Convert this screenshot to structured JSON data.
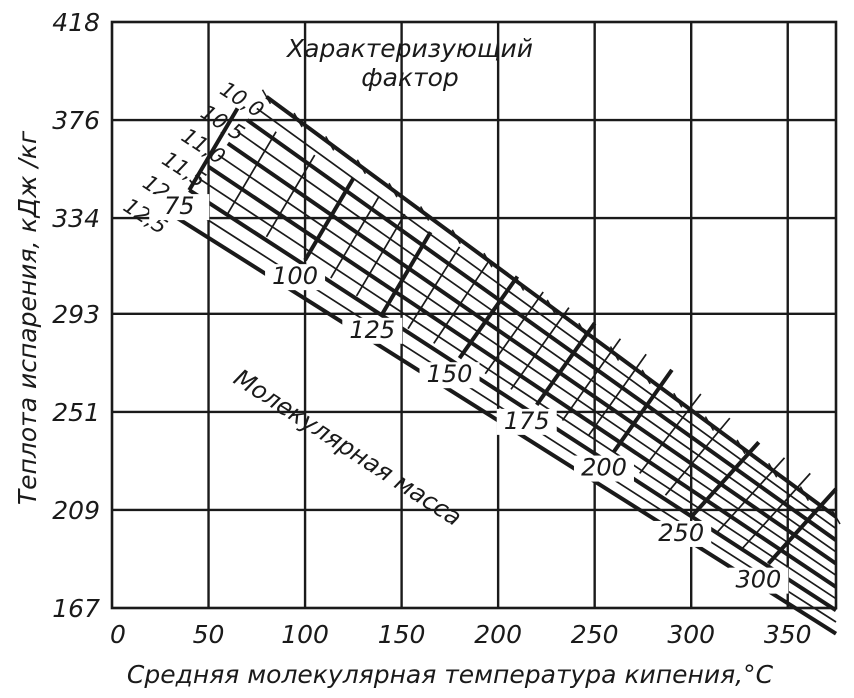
{
  "chart_data": {
    "type": "line",
    "title": "",
    "xlabel": "Средняя молекулярная температура кипения,°C",
    "ylabel": "Теплота испарения, кДж /кг",
    "xlim": [
      0,
      375
    ],
    "ylim": [
      167,
      418
    ],
    "x_ticks": [
      "0",
      "50",
      "100",
      "150",
      "200",
      "250",
      "300",
      "350"
    ],
    "y_ticks": [
      "418",
      "376",
      "334",
      "293",
      "251",
      "209",
      "167"
    ],
    "grid": true,
    "legend": "none",
    "factor_title": [
      "Характеризующий",
      "фактор"
    ],
    "mass_title": "Молекулярная масса",
    "factor_lines": [
      {
        "label": "10,0",
        "points": [
          [
            80,
            386
          ],
          [
            375,
            206
          ]
        ]
      },
      {
        "label": "10,5",
        "points": [
          [
            70,
            376
          ],
          [
            375,
            196
          ]
        ]
      },
      {
        "label": "11,0",
        "points": [
          [
            60,
            366
          ],
          [
            375,
            186
          ]
        ]
      },
      {
        "label": "11,5",
        "points": [
          [
            50,
            356
          ],
          [
            375,
            176
          ]
        ]
      },
      {
        "label": "12,0",
        "points": [
          [
            40,
            346
          ],
          [
            375,
            166
          ]
        ]
      },
      {
        "label": "12,5",
        "points": [
          [
            30,
            336
          ],
          [
            375,
            156
          ]
        ]
      }
    ],
    "mass_lines": [
      {
        "label": "75",
        "points": [
          [
            40,
            346
          ],
          [
            65,
            381
          ]
        ]
      },
      {
        "label": "100",
        "points": [
          [
            100,
            316
          ],
          [
            125,
            351
          ]
        ]
      },
      {
        "label": "125",
        "points": [
          [
            140,
            293
          ],
          [
            165,
            328
          ]
        ]
      },
      {
        "label": "150",
        "points": [
          [
            180,
            274
          ],
          [
            210,
            309
          ]
        ]
      },
      {
        "label": "175",
        "points": [
          [
            220,
            254
          ],
          [
            250,
            289
          ]
        ]
      },
      {
        "label": "200",
        "points": [
          [
            260,
            234
          ],
          [
            290,
            269
          ]
        ]
      },
      {
        "label": "250",
        "points": [
          [
            300,
            206
          ],
          [
            335,
            238
          ]
        ]
      },
      {
        "label": "300",
        "points": [
          [
            340,
            186
          ],
          [
            375,
            218
          ]
        ]
      }
    ]
  }
}
